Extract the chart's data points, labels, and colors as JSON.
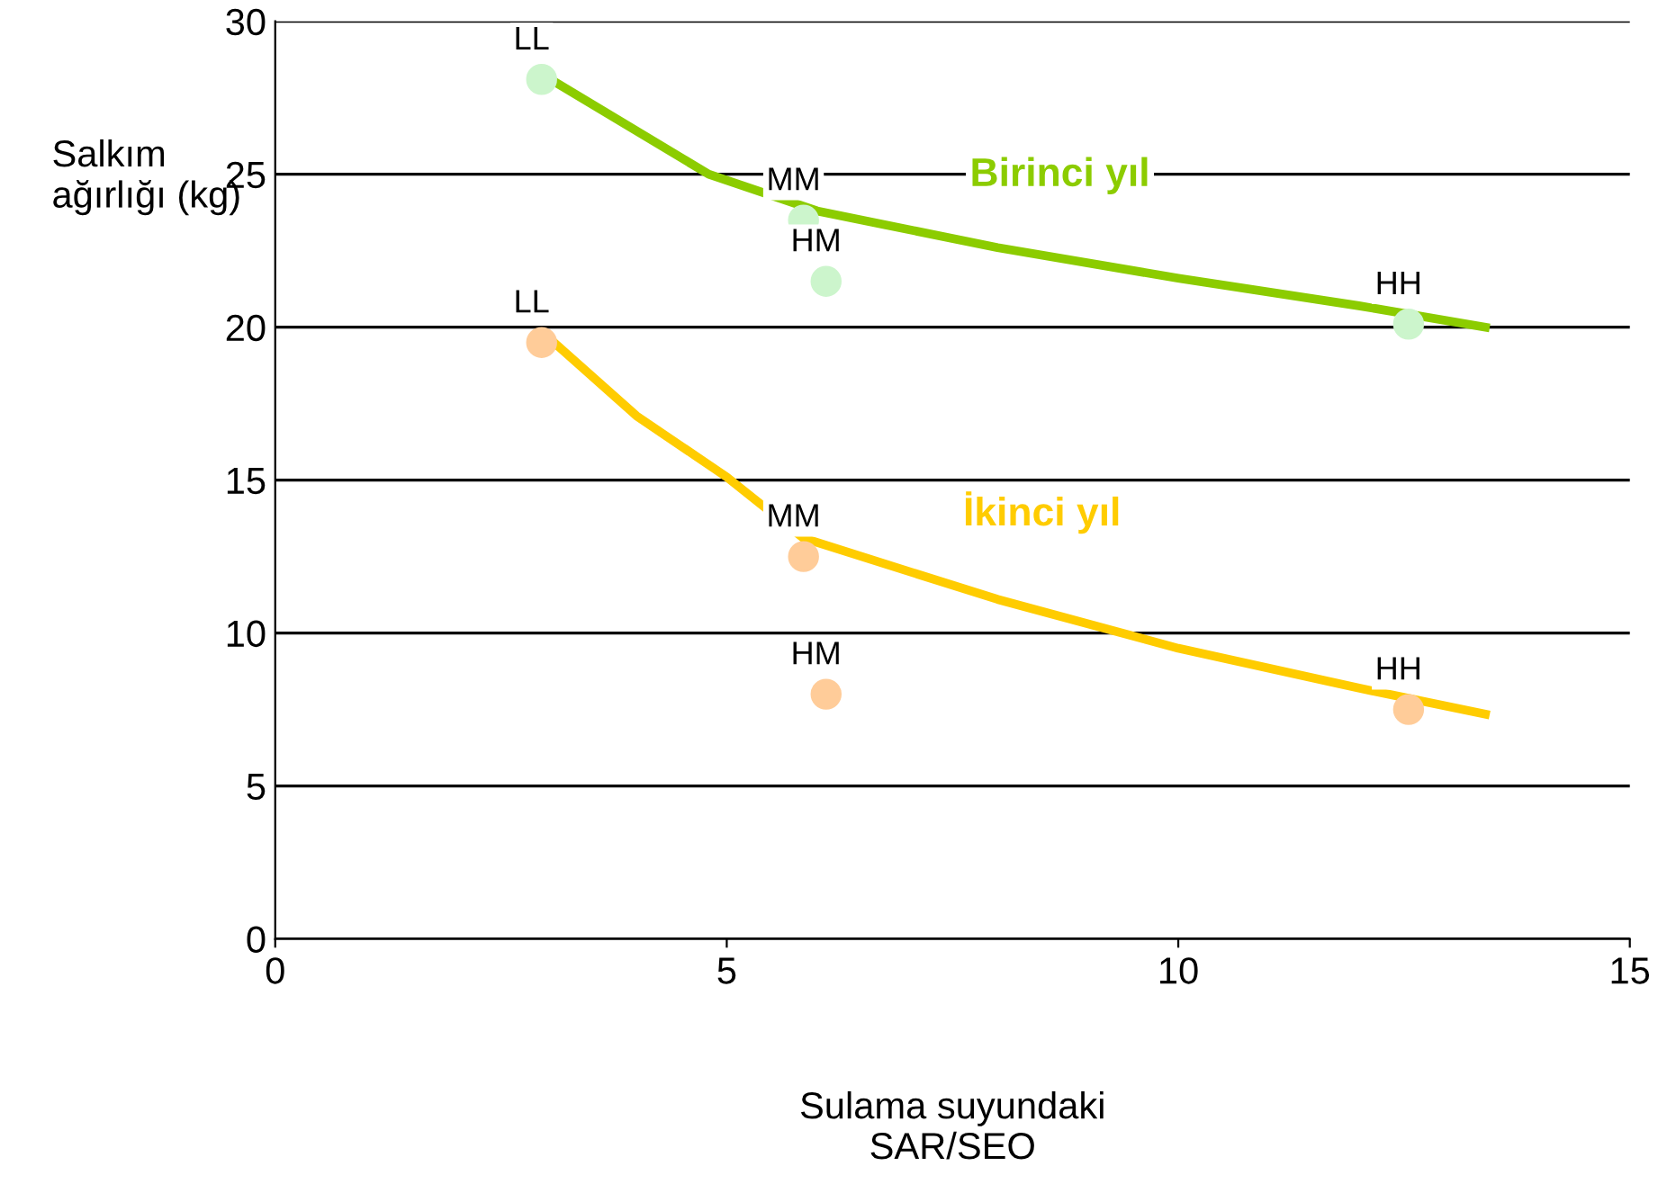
{
  "chart_data": {
    "type": "scatter",
    "xlabel": "Sulama suyundaki\nSAR/SEO",
    "ylabel": "Salkım\nağırlığı (kg)",
    "xlim": [
      0,
      15
    ],
    "xticks": [
      0,
      5,
      10,
      15
    ],
    "ylim": [
      0,
      30
    ],
    "yticks": [
      0,
      5,
      10,
      15,
      20,
      25,
      30
    ],
    "grid": "y",
    "legend": false,
    "series": [
      {
        "marker": "circle",
        "color": "#ccf5cc",
        "x": [
          2.95,
          5.85,
          6.1,
          12.55
        ],
        "values": [
          28.1,
          23.5,
          21.5,
          20.1
        ]
      },
      {
        "marker": "circle",
        "color": "#ffcc99",
        "x": [
          2.95,
          5.85,
          6.1,
          12.55
        ],
        "values": [
          19.5,
          12.5,
          8.0,
          7.5
        ]
      },
      {
        "type": "line",
        "name": "Birinci yıl",
        "color": "#8ccc00",
        "x": [
          3.05,
          4.8,
          6,
          8,
          10,
          12,
          13.4
        ],
        "values": [
          28.1,
          25.0,
          23.8,
          22.6,
          21.6,
          20.7,
          20.0
        ]
      },
      {
        "type": "line",
        "name": "İkinci yıl",
        "color": "#ffcc00",
        "x": [
          3.05,
          4,
          5,
          5.85,
          8,
          10,
          12,
          13.4
        ],
        "values": [
          19.6,
          17.1,
          15.1,
          13.1,
          11.1,
          9.5,
          8.2,
          7.35
        ]
      }
    ],
    "annotations": [
      {
        "text": "LL",
        "x": 2.95,
        "y": 28.1
      },
      {
        "text": "MM",
        "x": 5.85,
        "y": 23.5
      },
      {
        "text": "HM",
        "x": 6.1,
        "y": 21.5
      },
      {
        "text": "HH",
        "x": 12.55,
        "y": 20.1
      },
      {
        "text": "LL",
        "x": 2.95,
        "y": 19.5
      },
      {
        "text": "MM",
        "x": 5.85,
        "y": 12.5
      },
      {
        "text": "HM",
        "x": 6.1,
        "y": 8.0
      },
      {
        "text": "HH",
        "x": 12.55,
        "y": 7.5
      }
    ]
  }
}
